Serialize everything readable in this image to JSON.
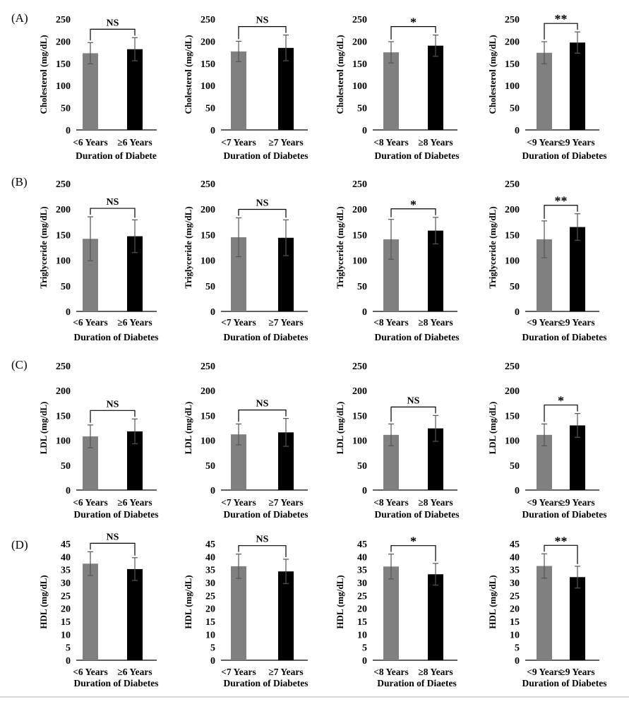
{
  "colors": {
    "group1": "#808080",
    "group2": "#000000",
    "axis": "#000000",
    "error": "#555555"
  },
  "rows": [
    {
      "label": "(A)",
      "ylabel": "Cholesterol (mg/dL)",
      "ylim": [
        0,
        250
      ],
      "ticks": [
        0,
        50,
        100,
        150,
        200,
        250
      ]
    },
    {
      "label": "(B)",
      "ylabel": "Triglyceride (mg/dL)",
      "ylim": [
        0,
        250
      ],
      "ticks": [
        0,
        50,
        100,
        150,
        200,
        250
      ]
    },
    {
      "label": "(C)",
      "ylabel": "LDL (mg/dL)",
      "ylim": [
        0,
        250
      ],
      "ticks": [
        0,
        50,
        100,
        150,
        200,
        250
      ]
    },
    {
      "label": "(D)",
      "ylabel": "HDL (mg/dL)",
      "ylim": [
        0,
        45
      ],
      "ticks": [
        0,
        5,
        10,
        15,
        20,
        25,
        30,
        35,
        40,
        45
      ]
    }
  ],
  "chart_data": [
    {
      "type": "bar",
      "row": 0,
      "col": 0,
      "categories": [
        "<6 Years",
        "≥6 Years"
      ],
      "values": [
        173,
        182
      ],
      "errors": [
        24,
        26
      ],
      "significance": "NS",
      "xlabel": "Duration of Diabete"
    },
    {
      "type": "bar",
      "row": 0,
      "col": 1,
      "categories": [
        "<7 Years",
        "≥7 Years"
      ],
      "values": [
        177,
        185
      ],
      "errors": [
        23,
        29
      ],
      "significance": "NS",
      "xlabel": "Duration of Diabetes"
    },
    {
      "type": "bar",
      "row": 0,
      "col": 2,
      "categories": [
        "<8 Years",
        "≥8 Years"
      ],
      "values": [
        175,
        190
      ],
      "errors": [
        24,
        24
      ],
      "significance": "*",
      "xlabel": "Duration of Diabetes"
    },
    {
      "type": "bar",
      "row": 0,
      "col": 3,
      "categories": [
        "<9 Years",
        "≥9 Years"
      ],
      "values": [
        174,
        197
      ],
      "errors": [
        25,
        24
      ],
      "significance": "**",
      "xlabel": "Duration of Diabetes"
    },
    {
      "type": "bar",
      "row": 1,
      "col": 0,
      "categories": [
        "<6 Years",
        "≥6 Years"
      ],
      "values": [
        142,
        147
      ],
      "errors": [
        43,
        32
      ],
      "significance": "NS",
      "xlabel": "Duration of Diabetes"
    },
    {
      "type": "bar",
      "row": 1,
      "col": 1,
      "categories": [
        "<7 Years",
        "≥7 Years"
      ],
      "values": [
        145,
        144
      ],
      "errors": [
        38,
        35
      ],
      "significance": "NS",
      "xlabel": "Duration of Diabetes"
    },
    {
      "type": "bar",
      "row": 1,
      "col": 2,
      "categories": [
        "<8 Years",
        "≥8 Years"
      ],
      "values": [
        141,
        158
      ],
      "errors": [
        39,
        26
      ],
      "significance": "*",
      "xlabel": "Duration of Diabetes"
    },
    {
      "type": "bar",
      "row": 1,
      "col": 3,
      "categories": [
        "<9 Years",
        "≥9 Years"
      ],
      "values": [
        141,
        165
      ],
      "errors": [
        36,
        26
      ],
      "significance": "**",
      "xlabel": "Duration of Diabetes"
    },
    {
      "type": "bar",
      "row": 2,
      "col": 0,
      "categories": [
        "<6 Years",
        "≥6 Years"
      ],
      "values": [
        108,
        118
      ],
      "errors": [
        23,
        25
      ],
      "significance": "NS",
      "xlabel": "Duration of Diabetes"
    },
    {
      "type": "bar",
      "row": 2,
      "col": 1,
      "categories": [
        "<7 Years",
        "≥7 Years"
      ],
      "values": [
        112,
        116
      ],
      "errors": [
        21,
        28
      ],
      "significance": "NS",
      "xlabel": "Duration of Diabetes"
    },
    {
      "type": "bar",
      "row": 2,
      "col": 2,
      "categories": [
        "<8 Years",
        "≥8 Years"
      ],
      "values": [
        111,
        124
      ],
      "errors": [
        22,
        26
      ],
      "significance": "NS",
      "xlabel": "Duration of Diabetes"
    },
    {
      "type": "bar",
      "row": 2,
      "col": 3,
      "categories": [
        "<9 Years",
        "≥9 Years"
      ],
      "values": [
        111,
        130
      ],
      "errors": [
        22,
        24
      ],
      "significance": "*",
      "xlabel": "Duration of Diabetes"
    },
    {
      "type": "bar",
      "row": 3,
      "col": 0,
      "categories": [
        "<6 Years",
        "≥6 Years"
      ],
      "values": [
        37.3,
        35.2
      ],
      "errors": [
        4.6,
        4.4
      ],
      "significance": "NS",
      "xlabel": "Duration of Diabetes"
    },
    {
      "type": "bar",
      "row": 3,
      "col": 1,
      "categories": [
        "<7 Years",
        "≥7 Years"
      ],
      "values": [
        36.3,
        34.3
      ],
      "errors": [
        4.7,
        4.7
      ],
      "significance": "NS",
      "xlabel": "Duration of Diabetes"
    },
    {
      "type": "bar",
      "row": 3,
      "col": 2,
      "categories": [
        "<8 Years",
        "≥8 Years"
      ],
      "values": [
        36.2,
        33.2
      ],
      "errors": [
        4.8,
        4.2
      ],
      "significance": "*",
      "xlabel": "Duration of Diaetes"
    },
    {
      "type": "bar",
      "row": 3,
      "col": 3,
      "categories": [
        "<9 Years",
        "≥9 Years"
      ],
      "values": [
        36.4,
        32.1
      ],
      "errors": [
        4.7,
        4.2
      ],
      "significance": "**",
      "xlabel": "Duration of Diabetes"
    }
  ]
}
